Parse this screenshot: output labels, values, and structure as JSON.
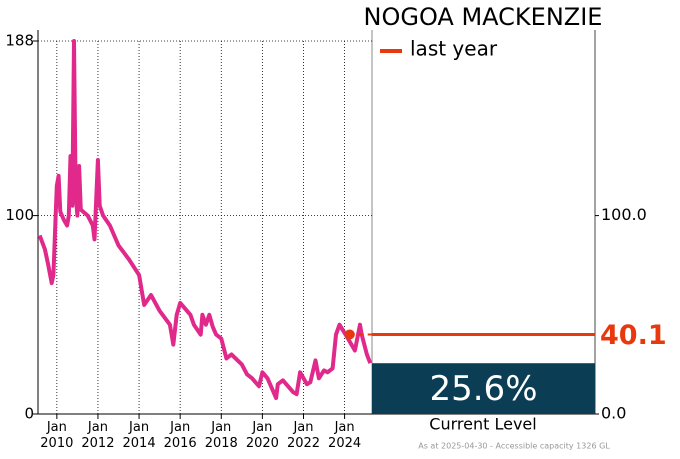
{
  "chart_data": {
    "type": "line",
    "title": "NOGOA MACKENZIE",
    "color": "#e0298a",
    "x": [
      "2009-03",
      "2009-06",
      "2009-08",
      "2009-10",
      "2009-11",
      "2010-01",
      "2010-02",
      "2010-03",
      "2010-05",
      "2010-07",
      "2010-08",
      "2010-09",
      "2010-10",
      "2010-11",
      "2010-12",
      "2011-01",
      "2011-02",
      "2011-03",
      "2011-07",
      "2011-10",
      "2011-11",
      "2012-01",
      "2012-02",
      "2012-04",
      "2012-08",
      "2013-01",
      "2013-07",
      "2014-01",
      "2014-04",
      "2014-08",
      "2015-01",
      "2015-07",
      "2015-09",
      "2015-11",
      "2016-01",
      "2016-07",
      "2016-09",
      "2017-01",
      "2017-02",
      "2017-04",
      "2017-06",
      "2017-08",
      "2017-10",
      "2018-01",
      "2018-04",
      "2018-07",
      "2019-01",
      "2019-04",
      "2019-07",
      "2019-09",
      "2019-11",
      "2020-01",
      "2020-04",
      "2020-07",
      "2020-09",
      "2020-10",
      "2021-01",
      "2021-07",
      "2021-09",
      "2021-11",
      "2022-03",
      "2022-05",
      "2022-08",
      "2022-10",
      "2023-01",
      "2023-03",
      "2023-06",
      "2023-08",
      "2023-10",
      "2024-03",
      "2024-07",
      "2024-10",
      "2024-11",
      "2025-02",
      "2025-04"
    ],
    "values": [
      90,
      83,
      75,
      66,
      70,
      115,
      120,
      102,
      98,
      95,
      100,
      130,
      105,
      188,
      110,
      100,
      125,
      103,
      100,
      95,
      88,
      128,
      105,
      100,
      95,
      85,
      78,
      70,
      55,
      60,
      52,
      45,
      35,
      50,
      56,
      50,
      45,
      40,
      50,
      45,
      50,
      44,
      40,
      38,
      28,
      30,
      25,
      20,
      18,
      16,
      14,
      21,
      18,
      12,
      8,
      15,
      17,
      11,
      10,
      21,
      15,
      16,
      27,
      18,
      22,
      21,
      23,
      40,
      45,
      38,
      32,
      45,
      40,
      30,
      25.6
    ],
    "xlim": [
      "2009-02",
      "2025-05"
    ],
    "xticks": [
      {
        "value": "2010-01",
        "label": "Jan 2010"
      },
      {
        "value": "2012-01",
        "label": "Jan 2012"
      },
      {
        "value": "2014-01",
        "label": "Jan 2014"
      },
      {
        "value": "2016-01",
        "label": "Jan 2016"
      },
      {
        "value": "2018-01",
        "label": "Jan 2018"
      },
      {
        "value": "2020-01",
        "label": "Jan 2020"
      },
      {
        "value": "2022-01",
        "label": "Jan 2022"
      },
      {
        "value": "2024-01",
        "label": "Jan 2024"
      }
    ],
    "ylim": [
      0,
      188
    ],
    "yticks": [
      0,
      100,
      188
    ],
    "y2ticks": [
      {
        "value": 0,
        "label": "0.0"
      },
      {
        "value": 100,
        "label": "100.0"
      }
    ],
    "grid": true,
    "last_year": {
      "name": "last year",
      "x": "2024-04",
      "value": 40.1,
      "color": "#e8380d"
    },
    "current": {
      "label": "Current Level",
      "value": 25.6,
      "value_label": "25.6%",
      "color": "#0b3d55"
    },
    "footnote": "As at 2025-04-30 - Accessible capacity 1326 GL"
  }
}
